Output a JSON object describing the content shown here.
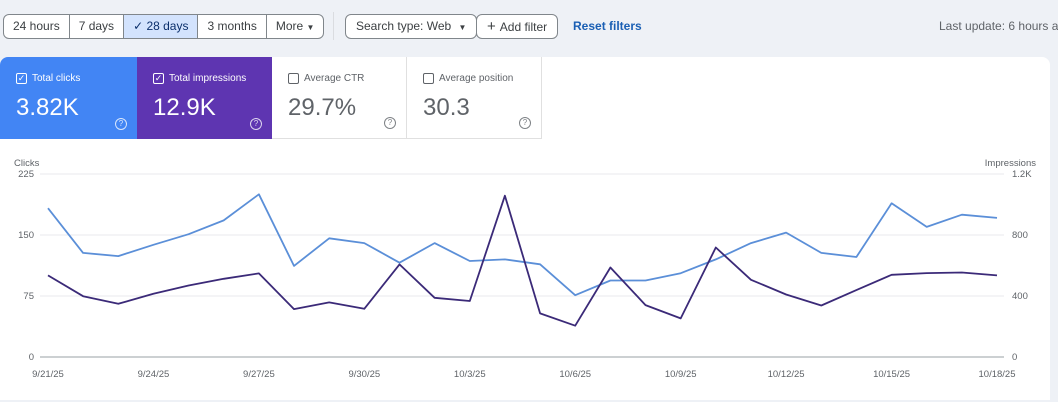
{
  "toolbar": {
    "ranges": [
      "24 hours",
      "7 days",
      "28 days",
      "3 months",
      "More"
    ],
    "selected_range": "28 days",
    "search_type": "Search type: Web",
    "add_filter": "Add filter",
    "reset_filters": "Reset filters",
    "last_update": "Last update: 6 hours a"
  },
  "cards": [
    {
      "label": "Total clicks",
      "value": "3.82K",
      "checked": true,
      "color": "#4285f4"
    },
    {
      "label": "Total impressions",
      "value": "12.9K",
      "checked": true,
      "color": "#5e35b1"
    },
    {
      "label": "Average CTR",
      "value": "29.7%",
      "checked": false
    },
    {
      "label": "Average position",
      "value": "30.3",
      "checked": false
    }
  ],
  "chart_data": {
    "type": "line",
    "left_axis_label": "Clicks",
    "right_axis_label": "Impressions",
    "left_ticks": [
      "0",
      "75",
      "150",
      "225"
    ],
    "right_ticks": [
      "0",
      "400",
      "800",
      "1.2K"
    ],
    "left_range": [
      0,
      225
    ],
    "right_range": [
      0,
      1200
    ],
    "x_tick_labels": [
      "9/21/25",
      "9/24/25",
      "9/27/25",
      "9/30/25",
      "10/3/25",
      "10/6/25",
      "10/9/25",
      "10/12/25",
      "10/15/25",
      "10/18/25"
    ],
    "days": 28,
    "series": [
      {
        "name": "Clicks",
        "axis": "left",
        "color": "#5b8fd8",
        "values": [
          183,
          128,
          124,
          138,
          151,
          168,
          200,
          112,
          146,
          140,
          116,
          140,
          118,
          120,
          114,
          76,
          94,
          94,
          103,
          120,
          140,
          153,
          128,
          123,
          189,
          160,
          175,
          171
        ]
      },
      {
        "name": "Impressions",
        "axis": "right",
        "color": "#3b2a78",
        "values": [
          535,
          399,
          349,
          415,
          469,
          513,
          548,
          314,
          358,
          316,
          607,
          388,
          367,
          1058,
          286,
          205,
          587,
          340,
          253,
          718,
          506,
          410,
          338,
          439,
          539,
          550,
          554,
          535
        ]
      }
    ],
    "grid": true
  }
}
